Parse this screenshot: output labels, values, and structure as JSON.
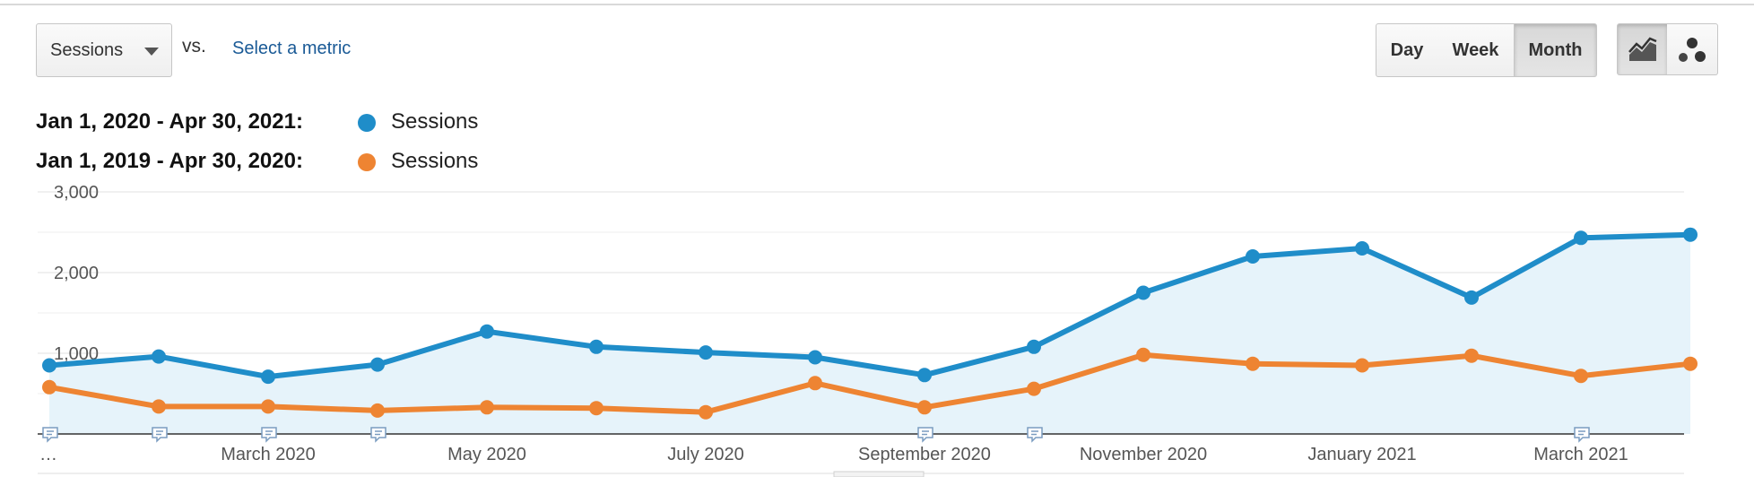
{
  "toolbar": {
    "metric_select": "Sessions",
    "vs_label": "vs.",
    "select_metric_link": "Select a metric",
    "range_buttons": [
      "Day",
      "Week",
      "Month"
    ],
    "active_range": "Month",
    "chart_type_buttons": [
      "line-chart-icon",
      "motion-chart-icon"
    ]
  },
  "legend": [
    {
      "range": "Jan 1, 2020 - Apr 30, 2021:",
      "series": "Sessions",
      "color": "#1f8dc9"
    },
    {
      "range": "Jan 1, 2019 - Apr 30, 2020:",
      "series": "Sessions",
      "color": "#ee8432"
    }
  ],
  "chart_data": {
    "type": "area",
    "y_ticks": [
      "3,000",
      "2,000",
      "1,000"
    ],
    "y_tick_values": [
      3000,
      2000,
      1000
    ],
    "ylim": [
      0,
      3000
    ],
    "grid": true,
    "x_tick_labels": [
      "…",
      "March 2020",
      "May 2020",
      "July 2020",
      "September 2020",
      "November 2020",
      "January 2021",
      "March 2021"
    ],
    "x_tick_positions": [
      0,
      2,
      4,
      6,
      8,
      10,
      12,
      14
    ],
    "point_count": 16,
    "series": [
      {
        "name": "Sessions",
        "period": "Jan 1, 2020 - Apr 30, 2021",
        "color": "#1f8dc9",
        "fill": "#e6f3fa",
        "values": [
          850,
          960,
          710,
          860,
          1270,
          1080,
          1010,
          950,
          730,
          1080,
          1750,
          2200,
          2300,
          1690,
          2430,
          2470
        ]
      },
      {
        "name": "Sessions",
        "period": "Jan 1, 2019 - Apr 30, 2020",
        "color": "#ee8432",
        "values": [
          580,
          340,
          340,
          290,
          330,
          320,
          270,
          630,
          330,
          560,
          980,
          870,
          850,
          970,
          720,
          870
        ]
      }
    ],
    "annotation_marker_indices": [
      0,
      1,
      2,
      3,
      8,
      9,
      14
    ]
  }
}
